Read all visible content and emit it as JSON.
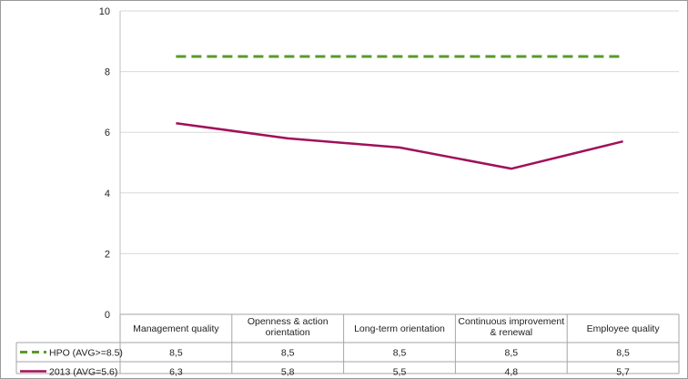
{
  "chart_data": {
    "type": "line",
    "title": "",
    "xlabel": "",
    "ylabel": "",
    "ylim": [
      0,
      10
    ],
    "yticks": [
      0,
      2,
      4,
      6,
      8,
      10
    ],
    "grid": "horizontal",
    "legend": "data-table",
    "categories": [
      [
        "Management quality"
      ],
      [
        "Openness & action",
        "orientation"
      ],
      [
        "Long-term orientation"
      ],
      [
        "Continuous improvement",
        "& renewal"
      ],
      [
        "Employee quality"
      ]
    ],
    "series": [
      {
        "name": "HPO (AVG>=8.5)",
        "values": [
          8.5,
          8.5,
          8.5,
          8.5,
          8.5
        ],
        "labels": [
          "8,5",
          "8,5",
          "8,5",
          "8,5",
          "8,5"
        ],
        "color": "#5a9a2a",
        "dash": true
      },
      {
        "name": "2013 (AVG=5.6)",
        "values": [
          6.3,
          5.8,
          5.5,
          4.8,
          5.7
        ],
        "labels": [
          "6,3",
          "5,8",
          "5,5",
          "4,8",
          "5,7"
        ],
        "color": "#a0105a",
        "dash": false
      }
    ]
  }
}
